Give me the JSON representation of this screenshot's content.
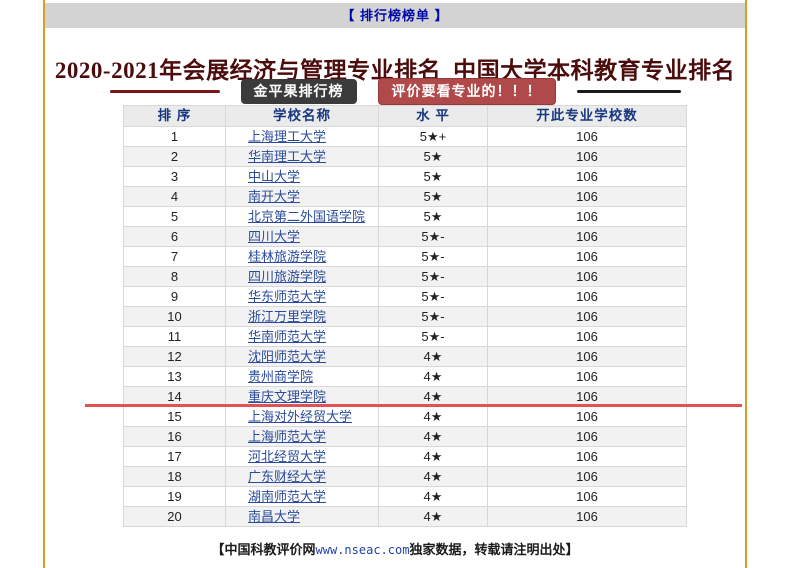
{
  "top_bar": {
    "label": "【 排行榜榜单 】"
  },
  "title": "2020-2021年会展经济与管理专业排名_中国大学本科教育专业排名",
  "badges": {
    "brand": "金平果排行榜",
    "slogan": "评价要看专业的！！！"
  },
  "table": {
    "headers": [
      "排 序",
      "学校名称",
      "水 平",
      "开此专业学校数"
    ],
    "rows": [
      {
        "rank": "1",
        "school": "上海理工大学",
        "level": "5★+",
        "count": "106"
      },
      {
        "rank": "2",
        "school": "华南理工大学",
        "level": "5★",
        "count": "106"
      },
      {
        "rank": "3",
        "school": "中山大学",
        "level": "5★",
        "count": "106"
      },
      {
        "rank": "4",
        "school": "南开大学",
        "level": "5★",
        "count": "106"
      },
      {
        "rank": "5",
        "school": "北京第二外国语学院",
        "level": "5★",
        "count": "106"
      },
      {
        "rank": "6",
        "school": "四川大学",
        "level": "5★-",
        "count": "106"
      },
      {
        "rank": "7",
        "school": "桂林旅游学院",
        "level": "5★-",
        "count": "106"
      },
      {
        "rank": "8",
        "school": "四川旅游学院",
        "level": "5★-",
        "count": "106"
      },
      {
        "rank": "9",
        "school": "华东师范大学",
        "level": "5★-",
        "count": "106"
      },
      {
        "rank": "10",
        "school": "浙江万里学院",
        "level": "5★-",
        "count": "106"
      },
      {
        "rank": "11",
        "school": "华南师范大学",
        "level": "5★-",
        "count": "106"
      },
      {
        "rank": "12",
        "school": "沈阳师范大学",
        "level": "4★",
        "count": "106"
      },
      {
        "rank": "13",
        "school": "贵州商学院",
        "level": "4★",
        "count": "106"
      },
      {
        "rank": "14",
        "school": "重庆文理学院",
        "level": "4★",
        "count": "106"
      },
      {
        "rank": "15",
        "school": "上海对外经贸大学",
        "level": "4★",
        "count": "106"
      },
      {
        "rank": "16",
        "school": "上海师范大学",
        "level": "4★",
        "count": "106"
      },
      {
        "rank": "17",
        "school": "河北经贸大学",
        "level": "4★",
        "count": "106"
      },
      {
        "rank": "18",
        "school": "广东财经大学",
        "level": "4★",
        "count": "106"
      },
      {
        "rank": "19",
        "school": "湖南师范大学",
        "level": "4★",
        "count": "106"
      },
      {
        "rank": "20",
        "school": "南昌大学",
        "level": "4★",
        "count": "106"
      }
    ],
    "red_divider_after_rank": "14"
  },
  "footer": {
    "prefix": "【中国科教评价网",
    "url": "www.nseac.com",
    "suffix": "独家数据，转载请注明出处】"
  },
  "colors": {
    "frame_gold": "#d6a11f",
    "top_bar_bg": "#d3d3d3",
    "top_bar_text": "#0008a8",
    "title_text": "#4d0c0c",
    "deco_line_red": "#7a1517",
    "deco_line_black": "#1a1a1a",
    "badge_dark_bg": "#3b3b3b",
    "badge_red_bg": "#b04a4a",
    "header_bg": "#ebebeb",
    "header_text": "#17377e",
    "school_link": "#2a4b9b",
    "row_alt_bg": "#f2f2f2",
    "red_divider": "#e25252",
    "footer_url": "#2244aa"
  }
}
